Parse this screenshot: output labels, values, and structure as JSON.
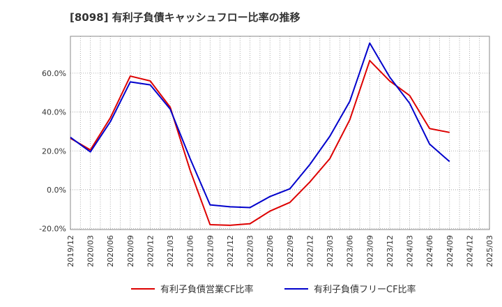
{
  "chart_data": {
    "type": "line",
    "title": "[8098]  有利子負債キャッシュフロー比率の推移",
    "xlabel": "",
    "ylabel": "",
    "x": [
      "2019/12",
      "2020/03",
      "2020/06",
      "2020/09",
      "2020/12",
      "2021/03",
      "2021/06",
      "2021/09",
      "2021/12",
      "2022/03",
      "2022/06",
      "2022/09",
      "2022/12",
      "2023/03",
      "2023/06",
      "2023/09",
      "2023/12",
      "2024/03",
      "2024/06",
      "2024/09",
      "2024/12",
      "2025/03"
    ],
    "ylim": [
      -20.5,
      79
    ],
    "yticks": [
      -20,
      0,
      20,
      40,
      60
    ],
    "ytick_labels": [
      "-20.0%",
      "0.0%",
      "20.0%",
      "40.0%",
      "60.0%"
    ],
    "grid": true,
    "legend_position": "bottom",
    "series": [
      {
        "name": "有利子負債営業CF比率",
        "color": "#dd0000",
        "values": [
          26.5,
          20.5,
          37,
          58.5,
          56,
          42.5,
          10,
          -18,
          -18.3,
          -17.5,
          -11,
          -6.5,
          4,
          16,
          36,
          66.5,
          56,
          48.5,
          31.5,
          29.5,
          null,
          null
        ]
      },
      {
        "name": "有利子負債フリーCF比率",
        "color": "#0000cc",
        "values": [
          27,
          19.5,
          35,
          55.5,
          54,
          41.5,
          16,
          -7.8,
          -8.8,
          -9.2,
          -3.5,
          0.5,
          13,
          27.5,
          45.5,
          75.5,
          58,
          44.5,
          23.5,
          14.5,
          null,
          null
        ]
      }
    ]
  }
}
